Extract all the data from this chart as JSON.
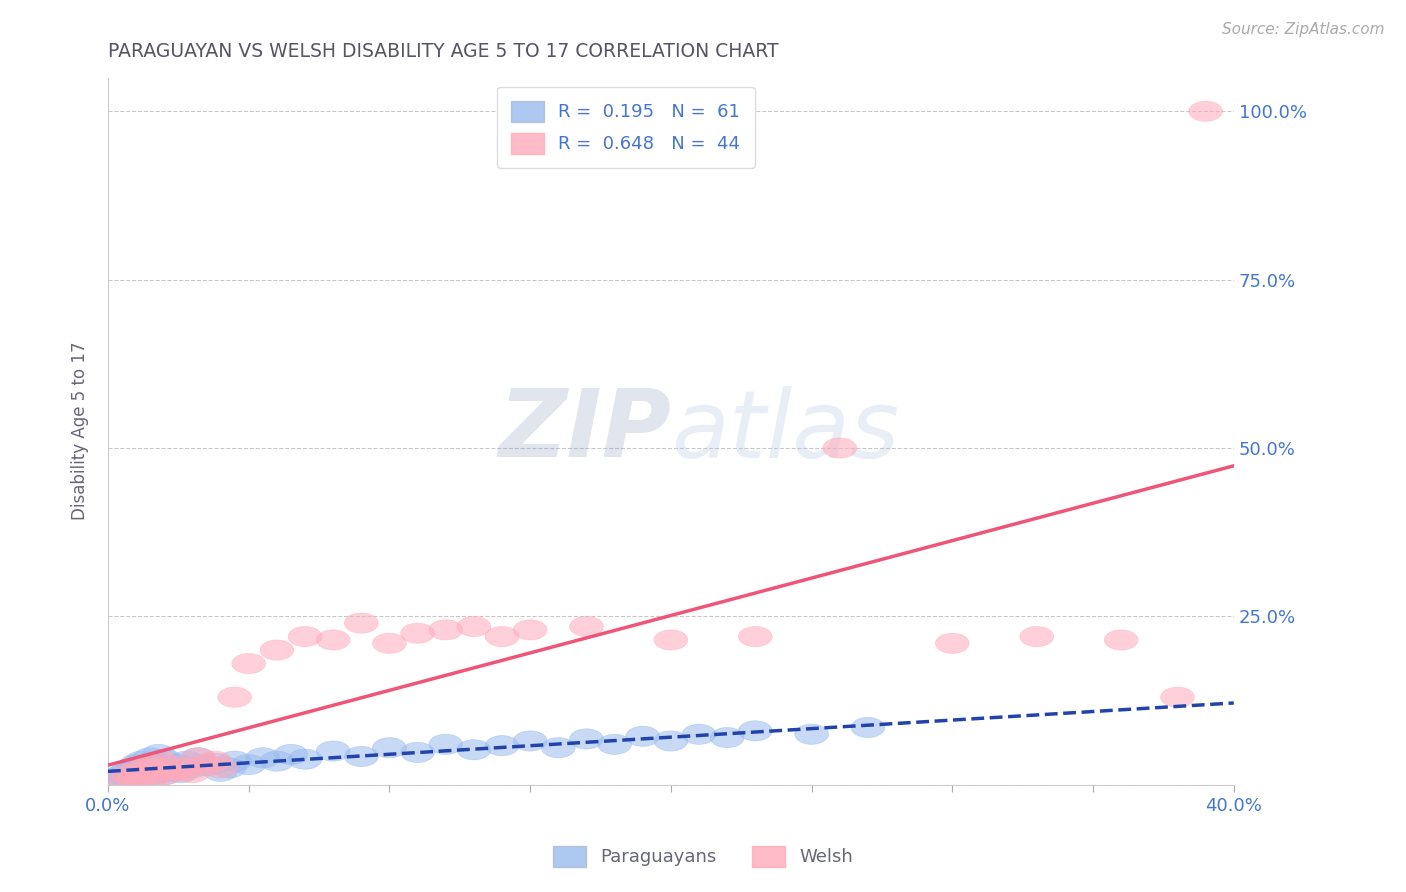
{
  "title": "PARAGUAYAN VS WELSH DISABILITY AGE 5 TO 17 CORRELATION CHART",
  "source": "Source: ZipAtlas.com",
  "ylabel": "Disability Age 5 to 17",
  "xlim": [
    0.0,
    0.4
  ],
  "ylim": [
    0.0,
    1.05
  ],
  "ytick_positions": [
    0.0,
    0.25,
    0.5,
    0.75,
    1.0
  ],
  "ytick_labels": [
    "",
    "25.0%",
    "50.0%",
    "75.0%",
    "100.0%"
  ],
  "paraguayan_color": "#99bbee",
  "welsh_color": "#ffaabb",
  "paraguayan_line_color": "#2244aa",
  "welsh_line_color": "#ee5577",
  "legend_R_paraguayan": "R =  0.195   N =  61",
  "legend_R_welsh": "R =  0.648   N =  44",
  "title_color": "#555566",
  "axis_label_color": "#666677",
  "tick_label_color": "#4477cc",
  "watermark_color": "#c8d8ee",
  "paraguayan_x": [
    0.003,
    0.005,
    0.006,
    0.007,
    0.008,
    0.008,
    0.009,
    0.01,
    0.01,
    0.011,
    0.011,
    0.012,
    0.012,
    0.013,
    0.013,
    0.014,
    0.015,
    0.015,
    0.016,
    0.016,
    0.017,
    0.018,
    0.018,
    0.019,
    0.02,
    0.02,
    0.022,
    0.023,
    0.025,
    0.026,
    0.028,
    0.03,
    0.032,
    0.035,
    0.038,
    0.04,
    0.043,
    0.045,
    0.05,
    0.055,
    0.06,
    0.065,
    0.07,
    0.08,
    0.09,
    0.1,
    0.11,
    0.12,
    0.13,
    0.14,
    0.15,
    0.16,
    0.17,
    0.18,
    0.19,
    0.2,
    0.21,
    0.22,
    0.23,
    0.25,
    0.27
  ],
  "paraguayan_y": [
    0.01,
    0.015,
    0.008,
    0.02,
    0.012,
    0.018,
    0.025,
    0.01,
    0.03,
    0.015,
    0.022,
    0.018,
    0.035,
    0.012,
    0.028,
    0.02,
    0.025,
    0.04,
    0.015,
    0.032,
    0.028,
    0.018,
    0.045,
    0.022,
    0.015,
    0.038,
    0.025,
    0.02,
    0.03,
    0.018,
    0.035,
    0.025,
    0.04,
    0.028,
    0.032,
    0.02,
    0.025,
    0.035,
    0.03,
    0.04,
    0.035,
    0.045,
    0.038,
    0.05,
    0.042,
    0.055,
    0.048,
    0.06,
    0.052,
    0.058,
    0.065,
    0.055,
    0.068,
    0.06,
    0.072,
    0.065,
    0.075,
    0.07,
    0.08,
    0.075,
    0.085
  ],
  "welsh_x": [
    0.005,
    0.007,
    0.009,
    0.01,
    0.011,
    0.012,
    0.013,
    0.014,
    0.015,
    0.016,
    0.017,
    0.018,
    0.019,
    0.02,
    0.022,
    0.024,
    0.026,
    0.028,
    0.03,
    0.032,
    0.035,
    0.038,
    0.04,
    0.045,
    0.05,
    0.06,
    0.07,
    0.08,
    0.09,
    0.1,
    0.11,
    0.12,
    0.13,
    0.14,
    0.15,
    0.17,
    0.2,
    0.23,
    0.26,
    0.3,
    0.33,
    0.36,
    0.38,
    0.39
  ],
  "welsh_y": [
    0.005,
    0.015,
    0.008,
    0.02,
    0.01,
    0.018,
    0.025,
    0.015,
    0.03,
    0.012,
    0.025,
    0.02,
    0.035,
    0.015,
    0.028,
    0.022,
    0.02,
    0.025,
    0.018,
    0.04,
    0.03,
    0.035,
    0.025,
    0.13,
    0.18,
    0.2,
    0.22,
    0.215,
    0.24,
    0.21,
    0.225,
    0.23,
    0.235,
    0.22,
    0.23,
    0.235,
    0.215,
    0.22,
    0.5,
    0.21,
    0.22,
    0.215,
    0.13,
    1.0
  ]
}
